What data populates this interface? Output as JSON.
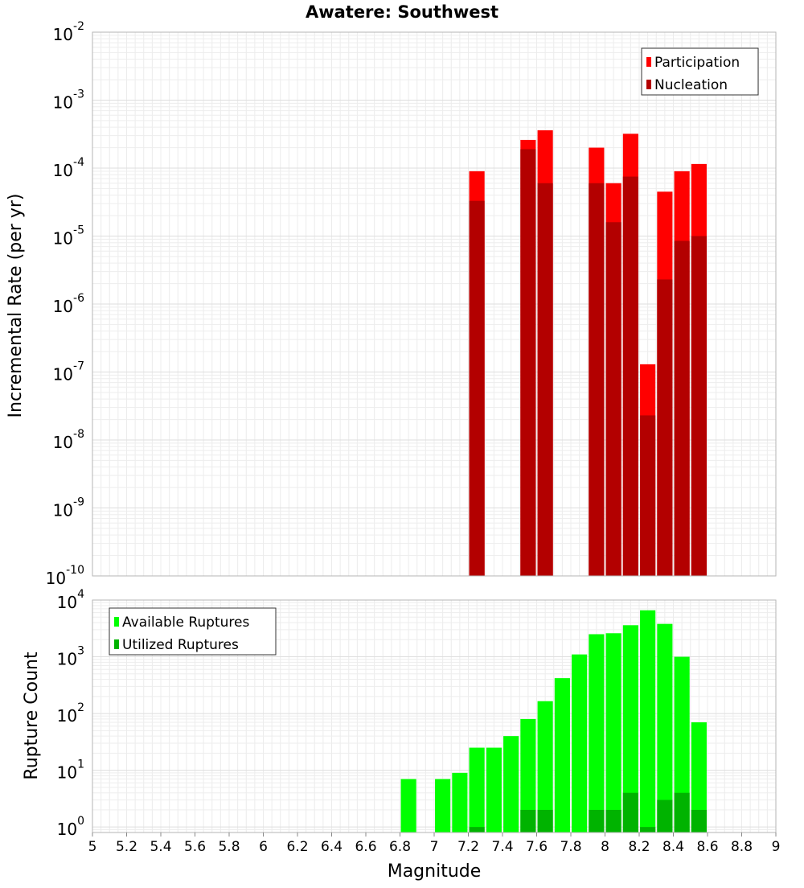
{
  "chart_data": [
    {
      "type": "bar",
      "title": "Awatere: Southwest",
      "xlabel": "",
      "ylabel": "Incremental Rate (per yr)",
      "yscale": "log",
      "ylim": [
        1e-10,
        0.01
      ],
      "xlim": [
        5,
        9
      ],
      "y_ticks": [
        {
          "base": "10",
          "exp": "-10",
          "value": 1e-10
        },
        {
          "base": "10",
          "exp": "-9",
          "value": 1e-09
        },
        {
          "base": "10",
          "exp": "-8",
          "value": 1e-08
        },
        {
          "base": "10",
          "exp": "-7",
          "value": 1e-07
        },
        {
          "base": "10",
          "exp": "-6",
          "value": 1e-06
        },
        {
          "base": "10",
          "exp": "-5",
          "value": 1e-05
        },
        {
          "base": "10",
          "exp": "-4",
          "value": 0.0001
        },
        {
          "base": "10",
          "exp": "-3",
          "value": 0.001
        },
        {
          "base": "10",
          "exp": "-2",
          "value": 0.01
        }
      ],
      "grid": true,
      "legend_position": "top-right",
      "bar_width": 0.09,
      "series": [
        {
          "name": "Participation",
          "color": "#ff0000",
          "points": [
            {
              "x": 7.25,
              "y": 9e-05
            },
            {
              "x": 7.55,
              "y": 0.00026
            },
            {
              "x": 7.65,
              "y": 0.00036
            },
            {
              "x": 7.95,
              "y": 0.0002
            },
            {
              "x": 8.05,
              "y": 6e-05
            },
            {
              "x": 8.15,
              "y": 0.00032
            },
            {
              "x": 8.25,
              "y": 1.3e-07
            },
            {
              "x": 8.35,
              "y": 4.5e-05
            },
            {
              "x": 8.45,
              "y": 9e-05
            },
            {
              "x": 8.55,
              "y": 0.000115
            }
          ]
        },
        {
          "name": "Nucleation",
          "color": "#b30000",
          "points": [
            {
              "x": 7.25,
              "y": 3.3e-05
            },
            {
              "x": 7.55,
              "y": 0.00019
            },
            {
              "x": 7.65,
              "y": 6e-05
            },
            {
              "x": 7.95,
              "y": 6e-05
            },
            {
              "x": 8.05,
              "y": 1.6e-05
            },
            {
              "x": 8.15,
              "y": 7.5e-05
            },
            {
              "x": 8.25,
              "y": 2.3e-08
            },
            {
              "x": 8.35,
              "y": 2.3e-06
            },
            {
              "x": 8.45,
              "y": 8.5e-06
            },
            {
              "x": 8.55,
              "y": 1e-05
            }
          ]
        }
      ]
    },
    {
      "type": "bar",
      "title": "",
      "xlabel": "Magnitude",
      "ylabel": "Rupture Count",
      "yscale": "log",
      "ylim": [
        0.8,
        10000
      ],
      "xlim": [
        5,
        9
      ],
      "y_ticks": [
        {
          "base": "10",
          "exp": "0",
          "value": 1
        },
        {
          "base": "10",
          "exp": "1",
          "value": 10
        },
        {
          "base": "10",
          "exp": "2",
          "value": 100
        },
        {
          "base": "10",
          "exp": "3",
          "value": 1000
        },
        {
          "base": "10",
          "exp": "4",
          "value": 10000
        }
      ],
      "x_ticks": [
        "5",
        "5.2",
        "5.4",
        "5.6",
        "5.8",
        "6",
        "6.2",
        "6.4",
        "6.6",
        "6.8",
        "7",
        "7.2",
        "7.4",
        "7.6",
        "7.8",
        "8",
        "8.2",
        "8.4",
        "8.6",
        "8.8",
        "9"
      ],
      "grid": true,
      "legend_position": "top-left",
      "bar_width": 0.09,
      "series": [
        {
          "name": "Available Ruptures",
          "color": "#00ff00",
          "points": [
            {
              "x": 6.85,
              "y": 7
            },
            {
              "x": 7.05,
              "y": 7
            },
            {
              "x": 7.15,
              "y": 9
            },
            {
              "x": 7.25,
              "y": 25
            },
            {
              "x": 7.35,
              "y": 25
            },
            {
              "x": 7.45,
              "y": 40
            },
            {
              "x": 7.55,
              "y": 80
            },
            {
              "x": 7.65,
              "y": 165
            },
            {
              "x": 7.75,
              "y": 420
            },
            {
              "x": 7.85,
              "y": 1100
            },
            {
              "x": 7.95,
              "y": 2500
            },
            {
              "x": 8.05,
              "y": 2600
            },
            {
              "x": 8.15,
              "y": 3600
            },
            {
              "x": 8.25,
              "y": 6600
            },
            {
              "x": 8.35,
              "y": 3800
            },
            {
              "x": 8.45,
              "y": 1000
            },
            {
              "x": 8.55,
              "y": 70
            }
          ]
        },
        {
          "name": "Utilized Ruptures",
          "color": "#00b300",
          "points": [
            {
              "x": 7.25,
              "y": 1
            },
            {
              "x": 7.55,
              "y": 2
            },
            {
              "x": 7.65,
              "y": 2
            },
            {
              "x": 7.95,
              "y": 2
            },
            {
              "x": 8.05,
              "y": 2
            },
            {
              "x": 8.15,
              "y": 4
            },
            {
              "x": 8.25,
              "y": 1
            },
            {
              "x": 8.35,
              "y": 3
            },
            {
              "x": 8.45,
              "y": 4
            },
            {
              "x": 8.55,
              "y": 2
            }
          ]
        }
      ]
    }
  ]
}
